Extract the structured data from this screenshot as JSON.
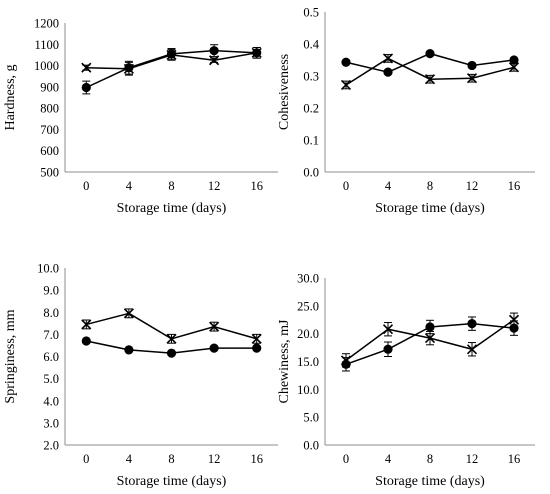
{
  "chart_data": [
    {
      "type": "line",
      "xlabel": "Storage time (days)",
      "ylabel": "Hardness, g",
      "categories": [
        "0",
        "4",
        "8",
        "12",
        "16"
      ],
      "yticks": [
        "500",
        "600",
        "700",
        "800",
        "900",
        "1000",
        "1100",
        "1200"
      ],
      "ylim": [
        500,
        1200
      ],
      "grid": false,
      "series": [
        {
          "marker": "circle",
          "values": [
            897,
            990,
            1055,
            1070,
            1060
          ],
          "errors": [
            30,
            30,
            25,
            28,
            25
          ]
        },
        {
          "marker": "cross",
          "values": [
            990,
            985,
            1050,
            1025,
            1060
          ],
          "errors": [
            12,
            30,
            25,
            10,
            25
          ]
        }
      ]
    },
    {
      "type": "line",
      "xlabel": "Storage time (days)",
      "ylabel": "Cohesiveness",
      "categories": [
        "0",
        "4",
        "8",
        "12",
        "16"
      ],
      "yticks": [
        "0.0",
        "0.1",
        "0.2",
        "0.3",
        "0.4",
        "0.5"
      ],
      "ylim": [
        0,
        0.5
      ],
      "grid": false,
      "series": [
        {
          "marker": "circle",
          "values": [
            0.343,
            0.312,
            0.37,
            0.333,
            0.35
          ],
          "errors": [
            0.005,
            0.005,
            0.005,
            0.005,
            0.005
          ]
        },
        {
          "marker": "cross",
          "values": [
            0.272,
            0.355,
            0.29,
            0.293,
            0.327
          ],
          "errors": [
            0.012,
            0.012,
            0.012,
            0.012,
            0.012
          ]
        }
      ]
    },
    {
      "type": "line",
      "xlabel": "Storage time (days)",
      "ylabel": "Springiness, mm",
      "categories": [
        "0",
        "4",
        "8",
        "12",
        "16"
      ],
      "yticks": [
        "2.0",
        "3.0",
        "4.0",
        "5.0",
        "6.0",
        "7.0",
        "8.0",
        "9.0",
        "10.0"
      ],
      "ylim": [
        2,
        10
      ],
      "grid": false,
      "series": [
        {
          "marker": "circle",
          "values": [
            6.7,
            6.3,
            6.15,
            6.38,
            6.38
          ],
          "errors": [
            0.05,
            0.05,
            0.05,
            0.05,
            0.05
          ]
        },
        {
          "marker": "cross",
          "values": [
            7.45,
            7.95,
            6.8,
            7.35,
            6.8
          ],
          "errors": [
            0.2,
            0.2,
            0.2,
            0.2,
            0.2
          ]
        }
      ]
    },
    {
      "type": "line",
      "xlabel": "Storage time (days)",
      "ylabel": "Chewiness, mJ",
      "categories": [
        "0",
        "4",
        "8",
        "12",
        "16"
      ],
      "yticks": [
        "0.0",
        "5.0",
        "10.0",
        "15.0",
        "20.0",
        "25.0",
        "30.0"
      ],
      "ylim": [
        0,
        30
      ],
      "grid": false,
      "series": [
        {
          "marker": "circle",
          "values": [
            14.5,
            17.2,
            21.2,
            21.8,
            21.0
          ],
          "errors": [
            1.2,
            1.3,
            1.2,
            1.2,
            1.3
          ]
        },
        {
          "marker": "cross",
          "values": [
            15.2,
            20.8,
            19.2,
            17.2,
            22.5
          ],
          "errors": [
            1.2,
            1.2,
            1.2,
            1.2,
            1.2
          ]
        }
      ]
    }
  ]
}
